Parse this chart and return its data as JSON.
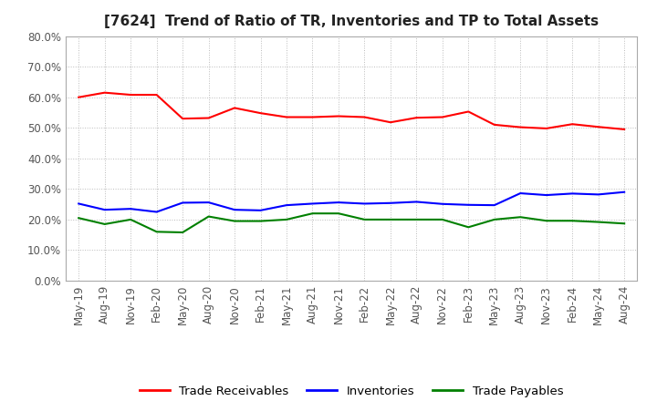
{
  "title": "[7624]  Trend of Ratio of TR, Inventories and TP to Total Assets",
  "x_labels": [
    "May-19",
    "Aug-19",
    "Nov-19",
    "Feb-20",
    "May-20",
    "Aug-20",
    "Nov-20",
    "Feb-21",
    "May-21",
    "Aug-21",
    "Nov-21",
    "Feb-22",
    "May-22",
    "Aug-22",
    "Nov-22",
    "Feb-23",
    "May-23",
    "Aug-23",
    "Nov-23",
    "Feb-24",
    "May-24",
    "Aug-24"
  ],
  "trade_receivables": [
    0.6,
    0.615,
    0.608,
    0.608,
    0.53,
    0.532,
    0.565,
    0.548,
    0.535,
    0.535,
    0.538,
    0.535,
    0.518,
    0.533,
    0.535,
    0.553,
    0.51,
    0.502,
    0.498,
    0.512,
    0.503,
    0.495
  ],
  "inventories": [
    0.252,
    0.232,
    0.235,
    0.225,
    0.255,
    0.256,
    0.232,
    0.23,
    0.247,
    0.252,
    0.256,
    0.252,
    0.254,
    0.258,
    0.251,
    0.248,
    0.247,
    0.286,
    0.28,
    0.285,
    0.282,
    0.29
  ],
  "trade_payables": [
    0.205,
    0.185,
    0.2,
    0.16,
    0.158,
    0.21,
    0.195,
    0.195,
    0.2,
    0.22,
    0.22,
    0.2,
    0.2,
    0.2,
    0.2,
    0.175,
    0.2,
    0.208,
    0.196,
    0.196,
    0.192,
    0.187
  ],
  "tr_color": "#ff0000",
  "inv_color": "#0000ff",
  "tp_color": "#008000",
  "ylim": [
    0.0,
    0.8
  ],
  "yticks": [
    0.0,
    0.1,
    0.2,
    0.3,
    0.4,
    0.5,
    0.6,
    0.7,
    0.8
  ],
  "bg_color": "#ffffff",
  "plot_bg_color": "#ffffff",
  "grid_color": "#bbbbbb",
  "legend_labels": [
    "Trade Receivables",
    "Inventories",
    "Trade Payables"
  ],
  "title_fontsize": 11,
  "axis_fontsize": 8.5,
  "legend_fontsize": 9.5,
  "tick_color": "#555555"
}
